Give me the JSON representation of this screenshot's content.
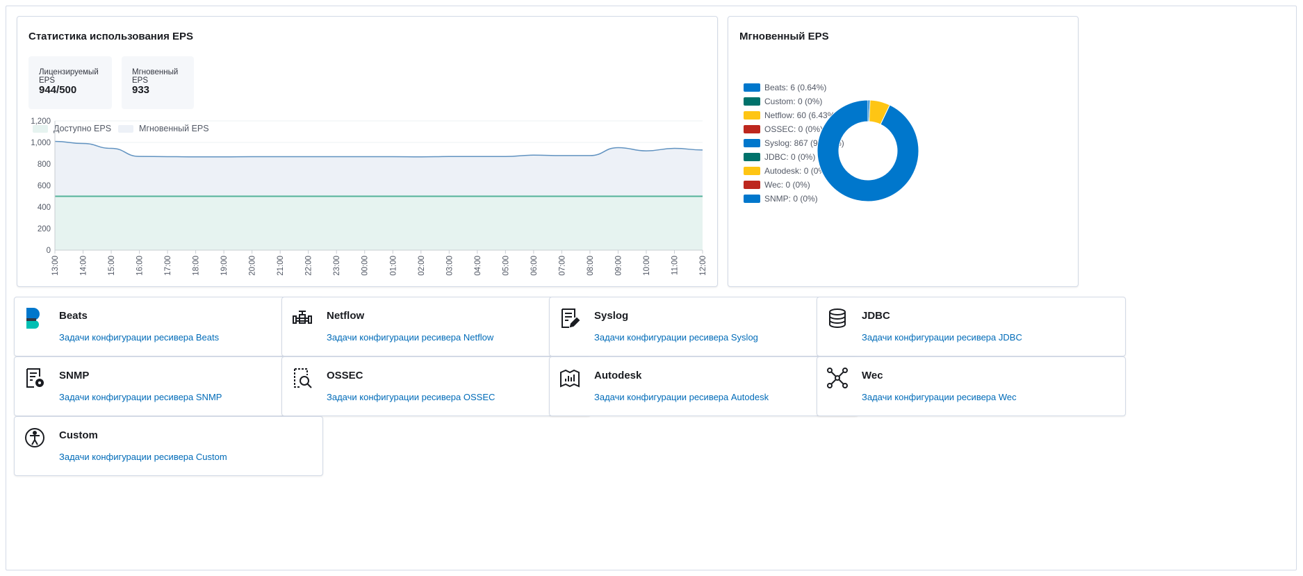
{
  "eps_panel": {
    "title": "Статистика использования EPS",
    "stats": [
      {
        "label": "Лицензируемый EPS",
        "value": "944/500"
      },
      {
        "label": "Мгновенный EPS",
        "value": "933"
      }
    ],
    "legend": [
      {
        "label": "Доступно EPS",
        "color": "#e6f3f0"
      },
      {
        "label": "Мгновенный EPS",
        "color": "#edf1f7"
      }
    ]
  },
  "chart_data": [
    {
      "type": "area",
      "title": "Статистика использования EPS",
      "xlabel": "",
      "ylabel": "",
      "ylim": [
        0,
        1200
      ],
      "yticks": [
        "0",
        "200",
        "400",
        "600",
        "800",
        "1,000",
        "1,200"
      ],
      "ytick_values": [
        0,
        200,
        400,
        600,
        800,
        1000,
        1200
      ],
      "categories": [
        "13:00",
        "14:00",
        "15:00",
        "16:00",
        "17:00",
        "18:00",
        "19:00",
        "20:00",
        "21:00",
        "22:00",
        "23:00",
        "00:00",
        "01:00",
        "02:00",
        "03:00",
        "04:00",
        "05:00",
        "06:00",
        "07:00",
        "08:00",
        "09:00",
        "10:00",
        "11:00",
        "12:00"
      ],
      "series": [
        {
          "name": "Мгновенный EPS",
          "color": "#6092c0",
          "fill": "#edf1f7",
          "values": [
            1010,
            990,
            945,
            870,
            868,
            866,
            866,
            868,
            868,
            868,
            868,
            868,
            868,
            866,
            869,
            869,
            869,
            882,
            878,
            878,
            952,
            922,
            945,
            930
          ]
        },
        {
          "name": "Доступно EPS",
          "color": "#54b399",
          "fill": "#e6f3f0",
          "values": [
            500,
            500,
            500,
            500,
            500,
            500,
            500,
            500,
            500,
            500,
            500,
            500,
            500,
            500,
            500,
            500,
            500,
            500,
            500,
            500,
            500,
            500,
            500,
            500
          ]
        }
      ],
      "grid": true,
      "legend_position": "top-left"
    },
    {
      "type": "pie",
      "title": "Мгновенный EPS",
      "categories": [
        "Beats",
        "Custom",
        "Netflow",
        "OSSEC",
        "Syslog",
        "JDBC",
        "Autodesk",
        "Wec",
        "SNMP"
      ],
      "values": [
        6,
        0,
        60,
        0,
        867,
        0,
        0,
        0,
        0
      ],
      "legend_labels": [
        "Beats: 6 (0.64%)",
        "Custom: 0 (0%)",
        "Netflow: 60 (6.43%)",
        "OSSEC: 0 (0%)",
        "Syslog: 867 (92.93%)",
        "JDBC: 0 (0%)",
        "Autodesk: 0 (0%)",
        "Wec: 0 (0%)",
        "SNMP: 0 (0%)"
      ],
      "colors": [
        "#0077cc",
        "#00726b",
        "#fec514",
        "#bd271e",
        "#0077cc",
        "#00726b",
        "#fec514",
        "#bd271e",
        "#0077cc"
      ],
      "donut": true,
      "legend_position": "left"
    }
  ],
  "receivers": [
    {
      "name": "Beats",
      "icon": "beats-logo-icon",
      "link": "Задачи конфигурации ресивера Beats"
    },
    {
      "name": "Netflow",
      "icon": "pipe-valve-icon",
      "link": "Задачи конфигурации ресивера Netflow"
    },
    {
      "name": "Syslog",
      "icon": "document-edit-icon",
      "link": "Задачи конфигурации ресивера Syslog"
    },
    {
      "name": "JDBC",
      "icon": "database-icon",
      "link": "Задачи конфигурации ресивера JDBC"
    },
    {
      "name": "SNMP",
      "icon": "document-gear-icon",
      "link": "Задачи конфигурации ресивера SNMP"
    },
    {
      "name": "OSSEC",
      "icon": "document-search-icon",
      "link": "Задачи конфигурации ресивера OSSEC"
    },
    {
      "name": "Autodesk",
      "icon": "map-chart-icon",
      "link": "Задачи конфигурации ресивера Autodesk"
    },
    {
      "name": "Wec",
      "icon": "network-nodes-icon",
      "link": "Задачи конфигурации ресивера Wec"
    },
    {
      "name": "Custom",
      "icon": "accessibility-icon",
      "link": "Задачи конфигурации ресивера Custom"
    }
  ]
}
